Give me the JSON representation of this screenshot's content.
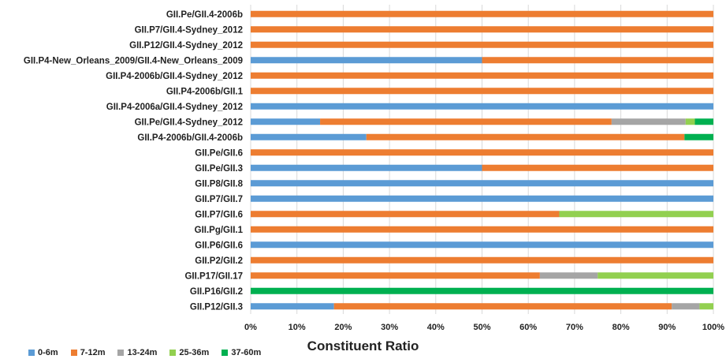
{
  "chart_data": {
    "type": "bar",
    "orientation": "horizontal",
    "stacked": "percent",
    "categories": [
      "GII.Pe/GII.4-2006b",
      "GII.P7/GII.4-Sydney_2012",
      "GII.P12/GII.4-Sydney_2012",
      "GII.P4-New_Orleans_2009/GII.4-New_Orleans_2009",
      "GII.P4-2006b/GII.4-Sydney_2012",
      "GII.P4-2006b/GII.1",
      "GII.P4-2006a/GII.4-Sydney_2012",
      "GII.Pe/GII.4-Sydney_2012",
      "GII.P4-2006b/GII.4-2006b",
      "GII.Pe/GII.6",
      "GII.Pe/GII.3",
      "GII.P8/GII.8",
      "GII.P7/GII.7",
      "GII.P7/GII.6",
      "GII.Pg/GII.1",
      "GII.P6/GII.6",
      "GII.P2/GII.2",
      "GII.P17/GII.17",
      "GII.P16/GII.2",
      "GII.P12/GII.3"
    ],
    "series": [
      {
        "name": "0-6m",
        "color": "#5b9bd5",
        "values": [
          0,
          0,
          0,
          50,
          0,
          0,
          100,
          15,
          25,
          0,
          50,
          100,
          100,
          0,
          0,
          100,
          0,
          0,
          0,
          18
        ]
      },
      {
        "name": "7-12m",
        "color": "#ed7d31",
        "values": [
          100,
          100,
          100,
          50,
          100,
          100,
          0,
          63,
          68.75,
          100,
          50,
          0,
          0,
          66.7,
          100,
          0,
          100,
          62.5,
          0,
          73
        ]
      },
      {
        "name": "13-24m",
        "color": "#a5a5a5",
        "values": [
          0,
          0,
          0,
          0,
          0,
          0,
          0,
          16,
          0,
          0,
          0,
          0,
          0,
          0,
          0,
          0,
          0,
          12.5,
          0,
          6
        ]
      },
      {
        "name": "25-36m",
        "color": "#92d050",
        "values": [
          0,
          0,
          0,
          0,
          0,
          0,
          0,
          2,
          0,
          0,
          0,
          0,
          0,
          33.3,
          0,
          0,
          0,
          25,
          0,
          3
        ]
      },
      {
        "name": "37-60m",
        "color": "#00b050",
        "values": [
          0,
          0,
          0,
          0,
          0,
          0,
          0,
          4,
          6.25,
          0,
          0,
          0,
          0,
          0,
          0,
          0,
          0,
          0,
          100,
          0
        ]
      }
    ],
    "xticks": [
      "0%",
      "10%",
      "20%",
      "30%",
      "40%",
      "50%",
      "60%",
      "70%",
      "80%",
      "90%",
      "100%"
    ],
    "xlim": [
      0,
      100
    ],
    "xlabel": "Constituent Ratio",
    "grid": "vertical",
    "legend_position": "bottom-left"
  }
}
